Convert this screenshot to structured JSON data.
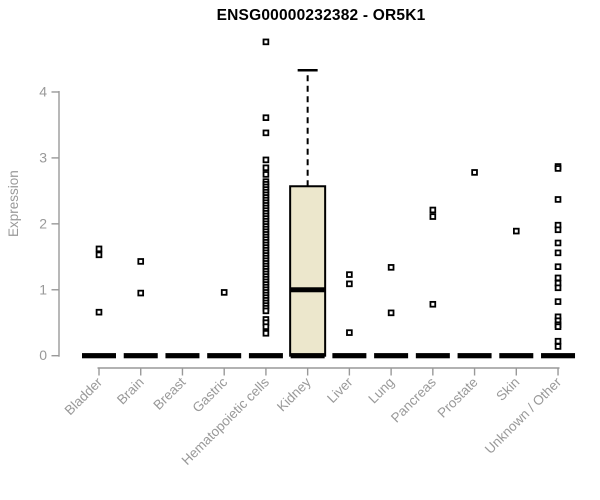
{
  "title": "ENSG00000232382 - OR5K1",
  "chart_data": {
    "type": "boxplot",
    "title": "ENSG00000232382 - OR5K1",
    "xlabel": "",
    "ylabel": "Expression",
    "ylim": [
      0,
      4.8
    ],
    "yticks": [
      0,
      1,
      2,
      3,
      4
    ],
    "grid": false,
    "legend": "none",
    "colors": {
      "box_fill": "#ECE7CC",
      "box_stroke": "#000000",
      "axis": "#999999",
      "tick_label": "#999999",
      "title_color": "#000000",
      "outlier": "#000000",
      "background": "#ffffff"
    },
    "categories": [
      "Bladder",
      "Brain",
      "Breast",
      "Gastric",
      "Hematopoietic cells",
      "Kidney",
      "Liver",
      "Lung",
      "Pancreas",
      "Prostate",
      "Skin",
      "Unknown / Other"
    ],
    "series": [
      {
        "name": "Bladder",
        "box": {
          "min": 0,
          "q1": 0,
          "median": 0,
          "q3": 0,
          "max": 0
        },
        "outliers": [
          1.62,
          1.53,
          0.66
        ]
      },
      {
        "name": "Brain",
        "box": {
          "min": 0,
          "q1": 0,
          "median": 0,
          "q3": 0,
          "max": 0
        },
        "outliers": [
          1.43,
          0.95
        ]
      },
      {
        "name": "Breast",
        "box": {
          "min": 0,
          "q1": 0,
          "median": 0,
          "q3": 0,
          "max": 0
        },
        "outliers": []
      },
      {
        "name": "Gastric",
        "box": {
          "min": 0,
          "q1": 0,
          "median": 0,
          "q3": 0,
          "max": 0
        },
        "outliers": [
          0.96
        ]
      },
      {
        "name": "Hematopoietic cells",
        "box": {
          "min": 0,
          "q1": 0,
          "median": 0,
          "q3": 0,
          "max": 0
        },
        "outliers": [
          4.76,
          3.61,
          3.38,
          2.97,
          2.85,
          2.75,
          2.64,
          2.6,
          2.56,
          2.52,
          2.48,
          2.44,
          2.4,
          2.36,
          2.32,
          2.28,
          2.24,
          2.2,
          2.16,
          2.12,
          2.08,
          2.04,
          2.0,
          1.96,
          1.92,
          1.88,
          1.84,
          1.8,
          1.76,
          1.72,
          1.68,
          1.64,
          1.6,
          1.56,
          1.52,
          1.48,
          1.44,
          1.4,
          1.36,
          1.32,
          1.28,
          1.24,
          1.2,
          1.16,
          1.12,
          1.08,
          1.04,
          1.0,
          0.96,
          0.92,
          0.88,
          0.84,
          0.8,
          0.76,
          0.72,
          0.68,
          0.55,
          0.5,
          0.44,
          0.34
        ]
      },
      {
        "name": "Kidney",
        "box": {
          "min": 0,
          "q1": 0,
          "median": 1.0,
          "q3": 2.57,
          "max": 4.33
        },
        "outliers": []
      },
      {
        "name": "Liver",
        "box": {
          "min": 0,
          "q1": 0,
          "median": 0,
          "q3": 0,
          "max": 0
        },
        "outliers": [
          1.23,
          1.09,
          0.35
        ]
      },
      {
        "name": "Lung",
        "box": {
          "min": 0,
          "q1": 0,
          "median": 0,
          "q3": 0,
          "max": 0
        },
        "outliers": [
          1.34,
          0.65
        ]
      },
      {
        "name": "Pancreas",
        "box": {
          "min": 0,
          "q1": 0,
          "median": 0,
          "q3": 0,
          "max": 0
        },
        "outliers": [
          2.21,
          2.11,
          0.78
        ]
      },
      {
        "name": "Prostate",
        "box": {
          "min": 0,
          "q1": 0,
          "median": 0,
          "q3": 0,
          "max": 0
        },
        "outliers": [
          2.78
        ]
      },
      {
        "name": "Skin",
        "box": {
          "min": 0,
          "q1": 0,
          "median": 0,
          "q3": 0,
          "max": 0
        },
        "outliers": [
          1.89
        ]
      },
      {
        "name": "Unknown / Other",
        "box": {
          "min": 0,
          "q1": 0,
          "median": 0,
          "q3": 0,
          "max": 0
        },
        "outliers": [
          2.87,
          2.84,
          2.37,
          1.98,
          1.91,
          1.71,
          1.56,
          1.35,
          1.18,
          1.1,
          1.03,
          0.82,
          0.59,
          0.53,
          0.47,
          0.44,
          0.22,
          0.14
        ]
      }
    ]
  }
}
